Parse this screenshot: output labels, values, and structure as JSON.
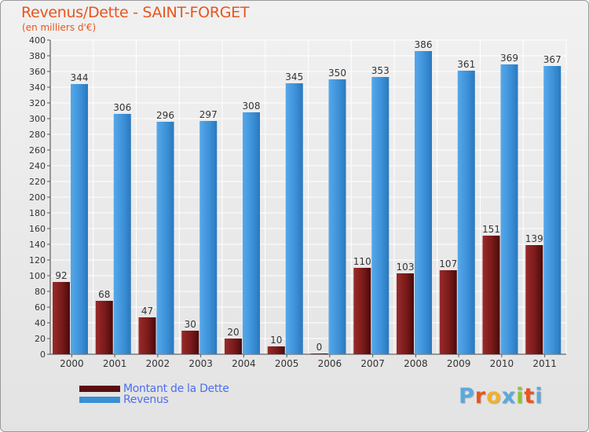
{
  "header": {
    "title": "Revenus/Dette - SAINT-FORGET",
    "subtitle": "(en milliers d'€)"
  },
  "colors": {
    "title": "#e8551e",
    "dette": "#7a1a1a",
    "revenus": "#3b8fd6",
    "legend_text": "#4c6ef0",
    "grid": "#ffffff",
    "background": "#e8e8e8"
  },
  "legend": {
    "items": [
      {
        "label": "Montant de la Dette",
        "color": "#7a1a1a"
      },
      {
        "label": "Revenus",
        "color": "#3b8fd6"
      }
    ]
  },
  "logo": {
    "text": "Proxiti",
    "letter_colors": [
      "#5aa9dd",
      "#e8551e",
      "#f2b12a",
      "#5aa9dd",
      "#8cc43c",
      "#e8551e",
      "#5aa9dd"
    ]
  },
  "chart_data": {
    "type": "bar",
    "title": "Revenus/Dette - SAINT-FORGET",
    "subtitle": "(en milliers d'€)",
    "xlabel": "",
    "ylabel": "",
    "categories": [
      "2000",
      "2001",
      "2002",
      "2003",
      "2004",
      "2005",
      "2006",
      "2007",
      "2008",
      "2009",
      "2010",
      "2011"
    ],
    "series": [
      {
        "name": "Montant de la Dette",
        "color": "#7a1a1a",
        "values": [
          92,
          68,
          47,
          30,
          20,
          10,
          0,
          110,
          103,
          107,
          151,
          139
        ]
      },
      {
        "name": "Revenus",
        "color": "#3b8fd6",
        "values": [
          344,
          306,
          296,
          297,
          308,
          345,
          350,
          353,
          386,
          361,
          369,
          367
        ]
      }
    ],
    "ylim": [
      0,
      400
    ],
    "ytick_step": 20,
    "grid": true,
    "legend_position": "bottom-left"
  }
}
